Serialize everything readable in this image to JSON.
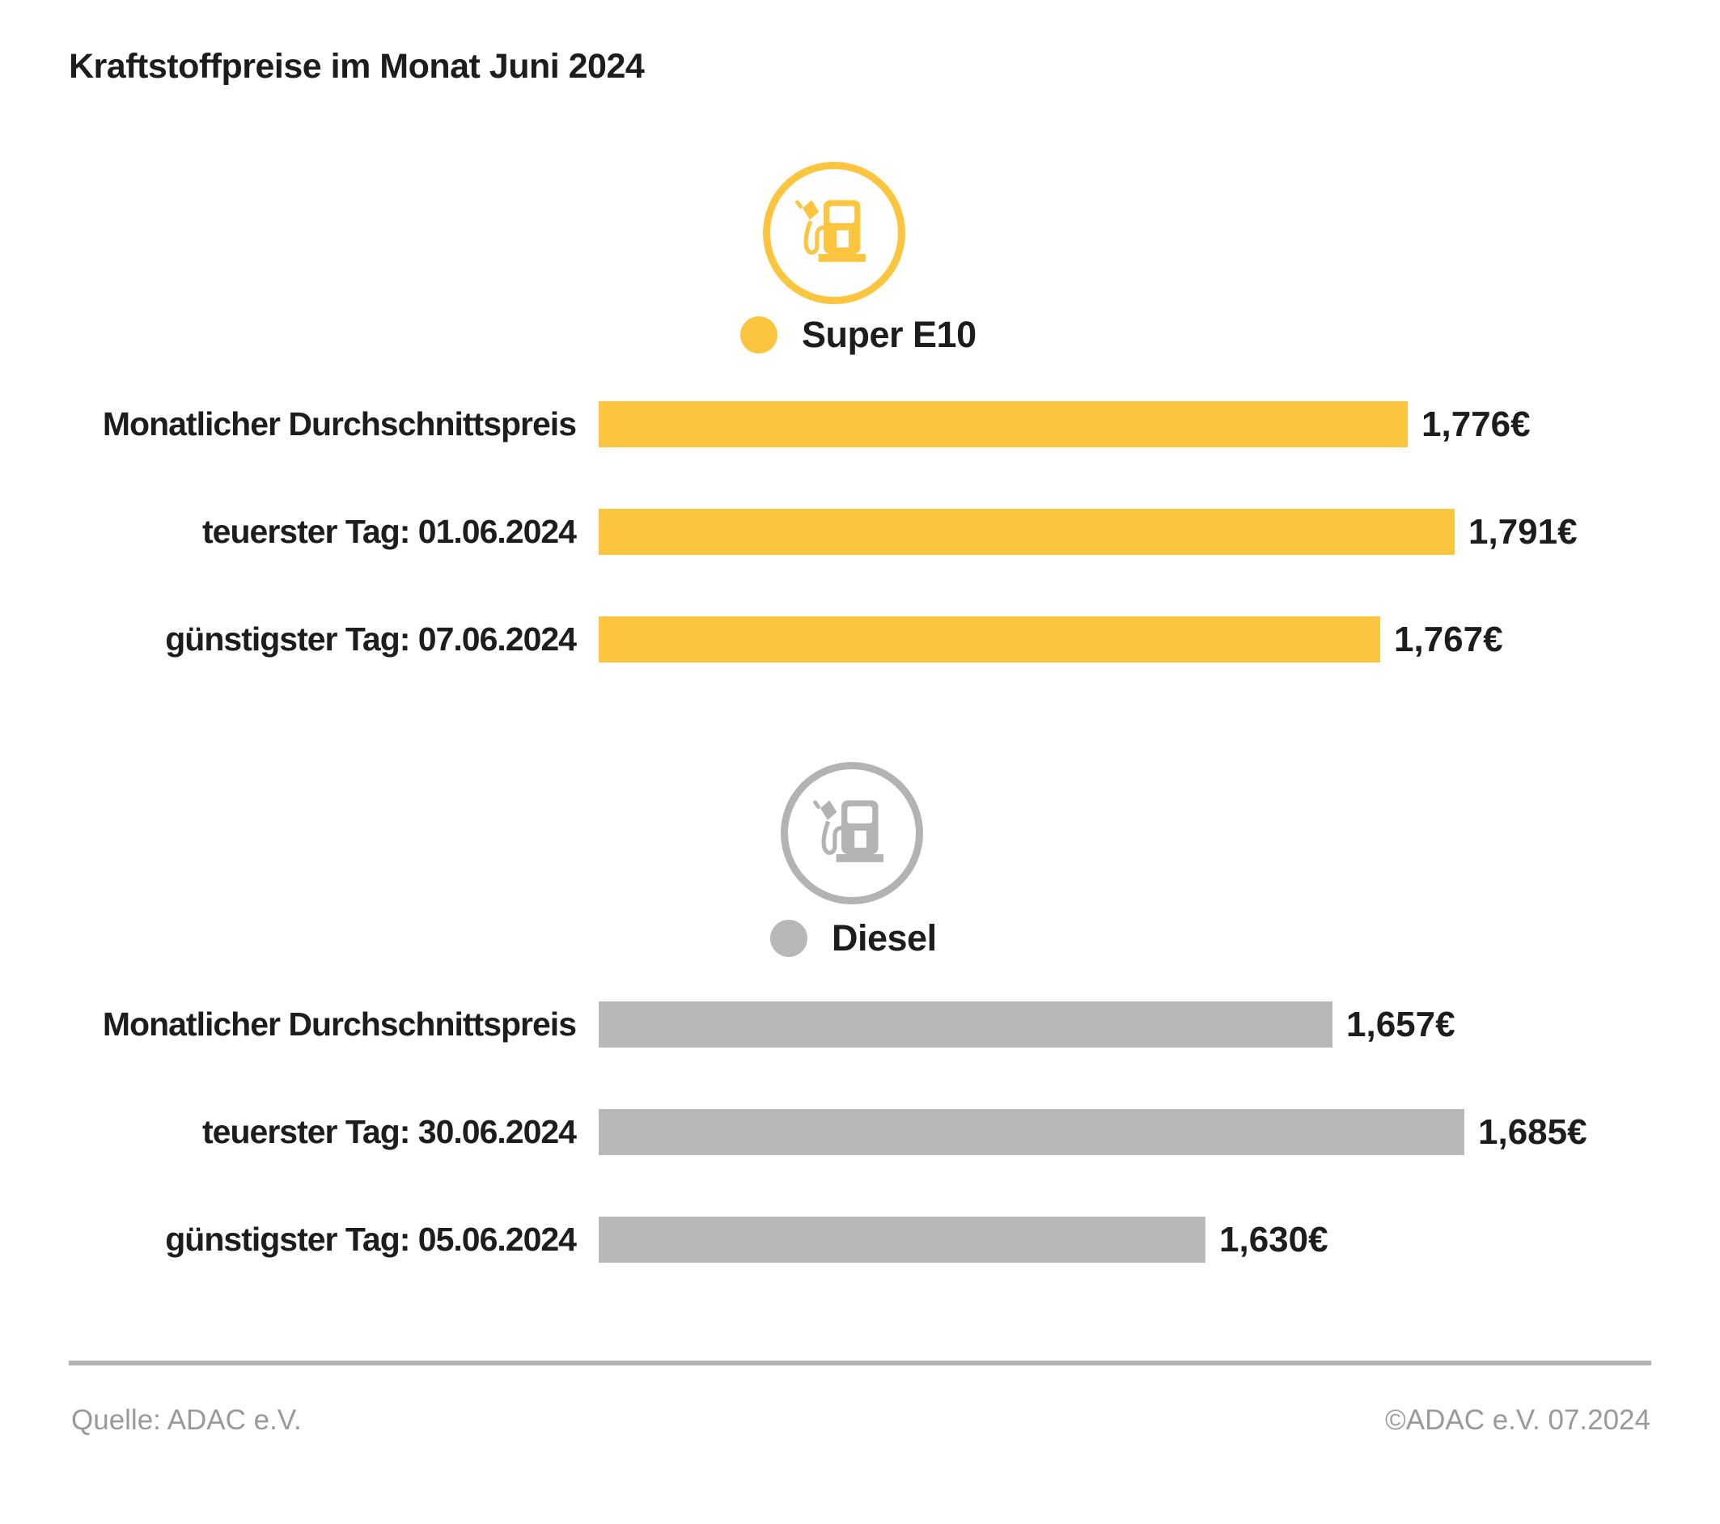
{
  "title": "Kraftstoffpreise im Monat Juni 2024",
  "colors": {
    "super_e10_yellow": "#FCC540",
    "diesel_gray": "#B8B8B8",
    "icon_gray": "#B3B3B3",
    "text_dark": "#1D1D1B",
    "footer_gray": "#9A9A9A",
    "divider_gray": "#B3B3B3"
  },
  "icons": {
    "super_e10": "fuel-pump-icon",
    "diesel": "fuel-pump-icon",
    "legend_dot": "legend-dot"
  },
  "chart_data": [
    {
      "type": "bar",
      "orientation": "horizontal",
      "series_name": "Super E10",
      "color": "#FCC540",
      "categories": [
        "Monatlicher Durchschnittspreis",
        "teuerster Tag: 01.06.2024",
        "günstigster Tag: 07.06.2024"
      ],
      "values": [
        1.776,
        1.791,
        1.767
      ],
      "value_labels": [
        "1,776€",
        "1,791€",
        "1,767€"
      ],
      "xlim": [
        1.515,
        1.8
      ],
      "grid": false,
      "legend_position": "top-center"
    },
    {
      "type": "bar",
      "orientation": "horizontal",
      "series_name": "Diesel",
      "color": "#B8B8B8",
      "categories": [
        "Monatlicher Durchschnittspreis",
        "teuerster Tag: 30.06.2024",
        "günstigster Tag: 05.06.2024"
      ],
      "values": [
        1.657,
        1.685,
        1.63
      ],
      "value_labels": [
        "1,657€",
        "1,685€",
        "1,630€"
      ],
      "xlim": [
        1.501,
        1.8
      ],
      "grid": false,
      "legend_position": "top-center"
    }
  ],
  "footer": {
    "source": "Quelle: ADAC e.V.",
    "copyright": "©ADAC e.V. 07.2024"
  }
}
